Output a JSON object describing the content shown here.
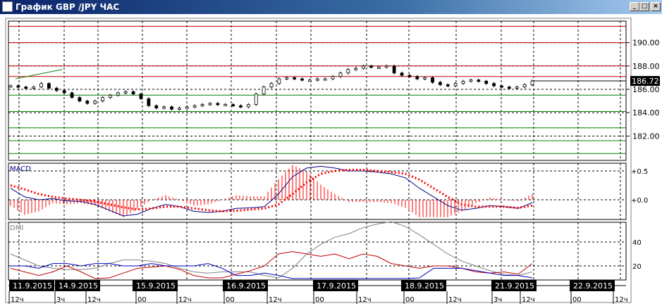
{
  "window": {
    "title": "График GBP /JPY  ЧАС",
    "buttons": [
      "_",
      "□",
      "×"
    ]
  },
  "price_panel": {
    "y_ticks": [
      "190.00",
      "188.00",
      "186.00",
      "184.00",
      "182.00"
    ],
    "y_tick_values": [
      190,
      188,
      186,
      184,
      182
    ],
    "last_price": "186.72",
    "red_levels": [
      191.4,
      190.0,
      188.0,
      187.1
    ],
    "green_levels": [
      185.5,
      184.1,
      182.7,
      181.6,
      180.5
    ],
    "closes": [
      186.3,
      186.2,
      186.1,
      186.2,
      186.5,
      186.1,
      185.9,
      185.7,
      185.3,
      185.0,
      184.8,
      185.0,
      185.3,
      185.5,
      185.7,
      185.8,
      185.6,
      185.2,
      184.6,
      184.4,
      184.5,
      184.3,
      184.4,
      184.5,
      184.6,
      184.7,
      184.8,
      184.7,
      184.7,
      184.6,
      184.5,
      184.7,
      185.6,
      186.2,
      186.5,
      186.9,
      187.0,
      186.9,
      186.8,
      186.8,
      186.9,
      186.9,
      187.1,
      187.4,
      187.7,
      187.8,
      188.0,
      187.9,
      187.9,
      188.0,
      187.4,
      187.2,
      187.1,
      186.9,
      187.0,
      186.6,
      186.4,
      186.3,
      186.5,
      186.7,
      186.8,
      186.7,
      186.5,
      186.3,
      186.2,
      186.1,
      186.2,
      186.4,
      186.72
    ],
    "colors": {
      "resistance": "#c00000",
      "support": "#008000",
      "trendline": "#008000"
    }
  },
  "macd_panel": {
    "label": "MACD",
    "y_ticks": [
      "+0.5",
      "+0.0"
    ],
    "macd": [
      0.2,
      0.05,
      0.0,
      0.02,
      -0.02,
      -0.03,
      -0.08,
      -0.18,
      -0.28,
      -0.25,
      -0.15,
      -0.08,
      -0.12,
      -0.2,
      -0.22,
      -0.2,
      -0.15,
      -0.14,
      -0.12,
      0.1,
      0.4,
      0.55,
      0.58,
      0.55,
      0.5,
      0.5,
      0.48,
      0.45,
      0.38,
      0.2,
      0.05,
      -0.1,
      -0.18,
      -0.15,
      -0.1,
      -0.12,
      -0.15,
      -0.05
    ],
    "signal": [
      0.25,
      0.18,
      0.1,
      0.05,
      0.02,
      0.0,
      -0.03,
      -0.08,
      -0.13,
      -0.17,
      -0.15,
      -0.12,
      -0.12,
      -0.15,
      -0.18,
      -0.2,
      -0.19,
      -0.17,
      -0.15,
      -0.08,
      0.1,
      0.3,
      0.45,
      0.5,
      0.52,
      0.52,
      0.5,
      0.48,
      0.45,
      0.35,
      0.2,
      0.05,
      -0.08,
      -0.12,
      -0.12,
      -0.12,
      -0.14,
      -0.1
    ],
    "colors": {
      "macd": "#000080",
      "signal": "#ff0000",
      "histogram": "#ff0000"
    }
  },
  "dmi_panel": {
    "label": "DMI",
    "y_ticks": [
      "40",
      "20"
    ],
    "adx": [
      30,
      25,
      20,
      18,
      17,
      17,
      18,
      22,
      25,
      25,
      24,
      22,
      18,
      15,
      14,
      15,
      15,
      15,
      12,
      10,
      18,
      30,
      38,
      44,
      47,
      52,
      55,
      57,
      53,
      46,
      38,
      30,
      24,
      20,
      16,
      13,
      12,
      15
    ],
    "plus_di": [
      18,
      15,
      12,
      15,
      20,
      15,
      8,
      10,
      14,
      18,
      19,
      20,
      17,
      12,
      10,
      10,
      13,
      16,
      20,
      30,
      32,
      30,
      28,
      30,
      26,
      30,
      28,
      22,
      20,
      18,
      20,
      20,
      18,
      15,
      14,
      15,
      13,
      22
    ],
    "minus_di": [
      20,
      20,
      18,
      22,
      22,
      20,
      22,
      22,
      20,
      20,
      22,
      20,
      20,
      20,
      22,
      18,
      12,
      12,
      14,
      12,
      8,
      6,
      4,
      5,
      4,
      3,
      4,
      3,
      8,
      10,
      18,
      18,
      18,
      16,
      14,
      12,
      12,
      10
    ],
    "colors": {
      "adx": "#808080",
      "plus_di": "#c00000",
      "minus_di": "#0000c0"
    }
  },
  "time_axis": {
    "dates": [
      "11.9.2015",
      "14.9.2015",
      "15.9.2015",
      "16.9.2015",
      "17.9.2015",
      "18.9.2015",
      "21.9.2015",
      "22.9.2015"
    ],
    "hours": [
      "12ч",
      "3ч",
      "12ч",
      "00",
      "12ч",
      "00",
      "12ч",
      "00",
      "12ч",
      "00",
      "12ч",
      "3ч",
      "12ч",
      "00",
      "12ч"
    ]
  }
}
